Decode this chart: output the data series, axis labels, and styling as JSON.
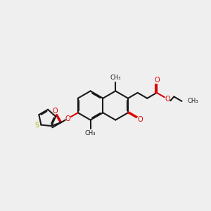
{
  "bg": "#efefef",
  "bc": "#1a1a1a",
  "oc": "#dd0000",
  "sc": "#b8b800",
  "lw": 1.5,
  "dbo": 0.048,
  "fsa": 7.0,
  "fsg": 6.0,
  "figsize": [
    3.0,
    3.0
  ],
  "dpi": 100,
  "r": 0.72,
  "r5": 0.44,
  "xlim": [
    -1.0,
    9.5
  ],
  "ylim": [
    1.5,
    8.5
  ]
}
